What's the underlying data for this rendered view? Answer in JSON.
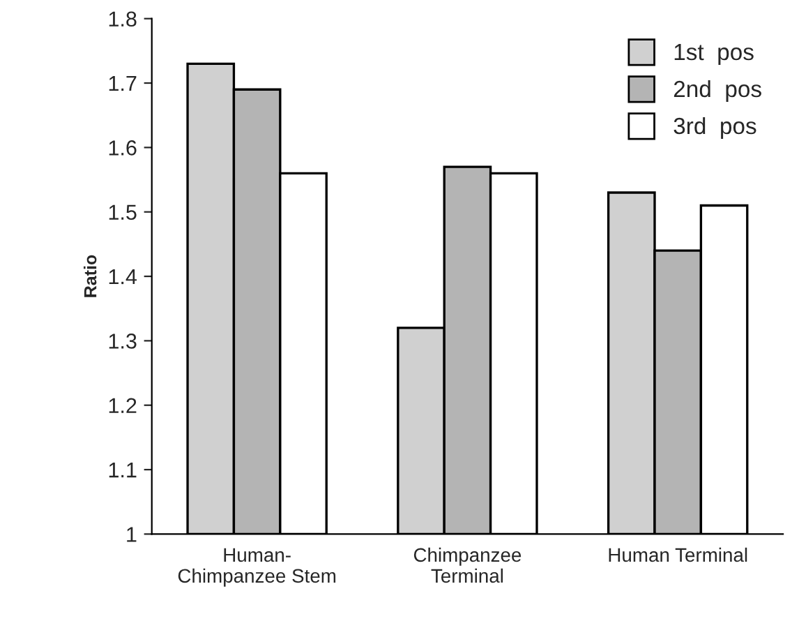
{
  "chart_data": {
    "type": "bar",
    "ylabel": "Ratio",
    "categories": [
      "Human-\nChimpanzee Stem",
      "Chimpanzee\nTerminal",
      "Human Terminal"
    ],
    "series": [
      {
        "name": "1st  pos",
        "color": "#d0d0d0",
        "values": [
          1.73,
          1.32,
          1.53
        ]
      },
      {
        "name": "2nd  pos",
        "color": "#b4b4b4",
        "values": [
          1.69,
          1.57,
          1.44
        ]
      },
      {
        "name": "3rd  pos",
        "color": "#ffffff",
        "values": [
          1.56,
          1.56,
          1.51
        ]
      }
    ],
    "ylim": [
      1,
      1.8
    ],
    "yticks": [
      1,
      1.1,
      1.2,
      1.3,
      1.4,
      1.5,
      1.6,
      1.7,
      1.8
    ],
    "grid": false,
    "legend": "top right"
  }
}
